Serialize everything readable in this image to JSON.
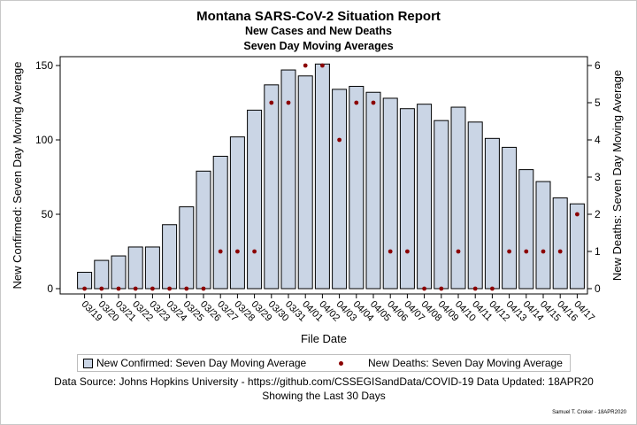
{
  "chart_data": {
    "type": "bar",
    "title": "Montana SARS-CoV-2 Situation Report",
    "subtitle_1": "New Cases and New Deaths",
    "subtitle_2": "Seven Day Moving Averages",
    "xlabel": "File Date",
    "ylabel_left": "New Confirmed: Seven Day Moving Average",
    "ylabel_right": "New Deaths: Seven Day Moving Average",
    "categories": [
      "03/19",
      "03/20",
      "03/21",
      "03/22",
      "03/23",
      "03/24",
      "03/25",
      "03/26",
      "03/27",
      "03/28",
      "03/29",
      "03/30",
      "03/31",
      "04/01",
      "04/02",
      "04/03",
      "04/04",
      "04/05",
      "04/06",
      "04/07",
      "04/08",
      "04/09",
      "04/10",
      "04/11",
      "04/12",
      "04/13",
      "04/14",
      "04/15",
      "04/16",
      "04/17"
    ],
    "ylim_left": [
      0,
      150
    ],
    "yticks_left": [
      0,
      50,
      100,
      150
    ],
    "ylim_right": [
      0,
      6
    ],
    "yticks_right": [
      0,
      1,
      2,
      3,
      4,
      5,
      6
    ],
    "series": [
      {
        "name": "New Confirmed: Seven Day Moving Average",
        "type": "bar",
        "axis": "left",
        "color": "#cad5e5",
        "values": [
          11,
          19,
          22,
          28,
          28,
          43,
          55,
          79,
          89,
          102,
          120,
          137,
          147,
          143,
          151,
          134,
          136,
          132,
          128,
          121,
          124,
          113,
          122,
          112,
          101,
          95,
          80,
          72,
          61,
          57
        ]
      },
      {
        "name": "New Deaths: Seven Day Moving Average",
        "type": "scatter",
        "axis": "right",
        "color": "#8b0000",
        "values": [
          0,
          0,
          0,
          0,
          0,
          0,
          0,
          0,
          1,
          1,
          1,
          5,
          5,
          6,
          6,
          4,
          5,
          5,
          1,
          1,
          0,
          0,
          1,
          0,
          0,
          1,
          1,
          1,
          1,
          2
        ]
      }
    ],
    "legend_position": "bottom"
  },
  "footer": {
    "source": "Data Source: Johns Hopkins University - https://github.com/CSSEGISandData/COVID-19 Data Updated: 18APR20",
    "range": "Showing the Last 30 Days",
    "signature": "Samuel T. Croker - 18APR2020"
  }
}
